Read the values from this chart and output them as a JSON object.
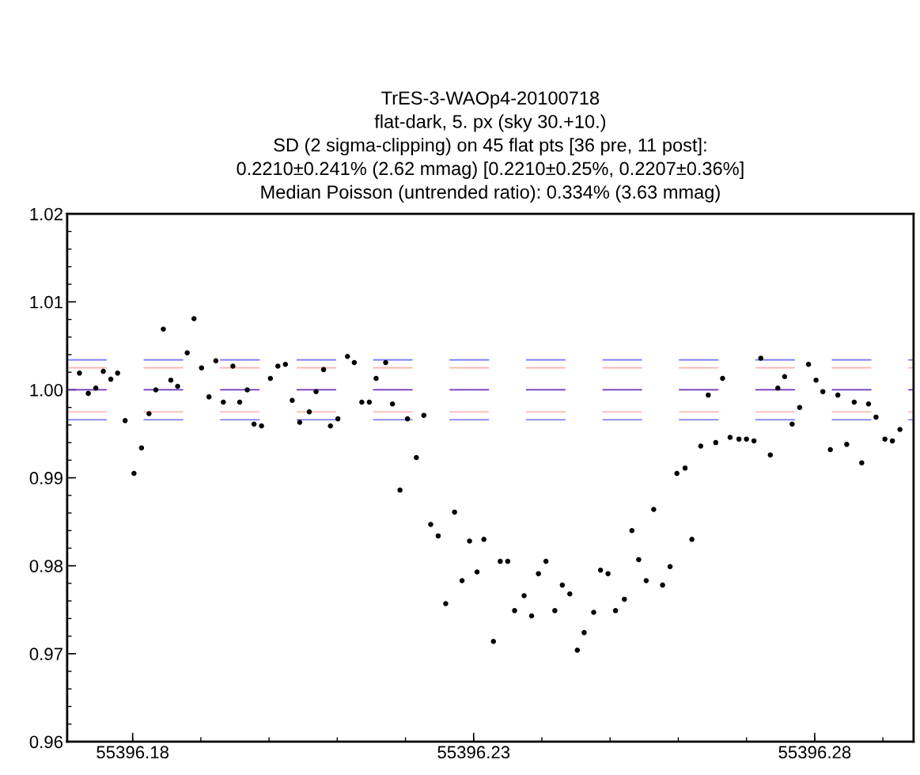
{
  "chart_data": {
    "type": "scatter",
    "title": "TrES-3-WAOp4-20100718",
    "subtitle": "flat-dark, 5. px (sky 30.+10.)\nSD (2 sigma-clipping) on 45 flat pts [36 pre, 11 post]:\n0.2210±0.241% (2.62 mmag) [0.2210±0.25%, 0.2207±0.36%]\nMedian Poisson (untrended ratio): 0.334% (3.63 mmag)",
    "x": [
      55396.1722,
      55396.1735,
      55396.1746,
      55396.1757,
      55396.1768,
      55396.1778,
      55396.1789,
      55396.1802,
      55396.1813,
      55396.1824,
      55396.1834,
      55396.1845,
      55396.1856,
      55396.1866,
      55396.188,
      55396.189,
      55396.1901,
      55396.1912,
      55396.1922,
      55396.1933,
      55396.1947,
      55396.1957,
      55396.1968,
      55396.1978,
      55396.1989,
      55396.2002,
      55396.2013,
      55396.2024,
      55396.2034,
      55396.2045,
      55396.2059,
      55396.2069,
      55396.208,
      55396.209,
      55396.2101,
      55396.2115,
      55396.2125,
      55396.2136,
      55396.2147,
      55396.2157,
      55396.2171,
      55396.2181,
      55396.2192,
      55396.2203,
      55396.2216,
      55396.2227,
      55396.2237,
      55396.2248,
      55396.2259,
      55396.2272,
      55396.2283,
      55396.2294,
      55396.2305,
      55396.2315,
      55396.2329,
      55396.2339,
      55396.235,
      55396.236,
      55396.2374,
      55396.2385,
      55396.2395,
      55396.2406,
      55396.2419,
      55396.243,
      55396.2441,
      55396.2452,
      55396.2462,
      55396.2476,
      55396.2486,
      55396.2497,
      55396.2508,
      55396.2521,
      55396.2532,
      55396.2542,
      55396.2553,
      55396.2564,
      55396.2577,
      55396.2588,
      55396.2598,
      55396.261,
      55396.262,
      55396.2633,
      55396.2644,
      55396.2655,
      55396.2665,
      55396.2676,
      55396.2689,
      55396.27,
      55396.2711,
      55396.2721,
      55396.2735,
      55396.2746,
      55396.2756,
      55396.2767,
      55396.2778,
      55396.2791,
      55396.2802,
      55396.2812,
      55396.2823,
      55396.2834,
      55396.2847,
      55396.2858,
      55396.2869,
      55396.2879,
      55396.289,
      55396.2903,
      55396.2914,
      55396.2925
    ],
    "values": [
      1.0019,
      0.9996,
      1.0002,
      1.0021,
      1.0012,
      1.0019,
      0.9965,
      0.9905,
      0.9934,
      0.9973,
      1.0,
      1.0069,
      1.0011,
      1.0004,
      1.0042,
      1.0081,
      1.0025,
      0.9992,
      1.0033,
      0.9986,
      1.0027,
      0.9986,
      1.0,
      0.9961,
      0.9959,
      1.0013,
      1.0027,
      1.0029,
      0.9988,
      0.9963,
      0.9975,
      0.9998,
      1.0023,
      0.9959,
      0.9967,
      1.0038,
      1.0031,
      0.9986,
      0.9986,
      1.0013,
      1.0031,
      0.9984,
      0.9886,
      0.9967,
      0.9923,
      0.9971,
      0.9847,
      0.9834,
      0.9757,
      0.9861,
      0.9783,
      0.9828,
      0.9793,
      0.983,
      0.9714,
      0.9805,
      0.9805,
      0.9749,
      0.9766,
      0.9743,
      0.9791,
      0.9805,
      0.9749,
      0.9778,
      0.9768,
      0.9704,
      0.9724,
      0.9747,
      0.9795,
      0.9791,
      0.9749,
      0.9762,
      0.984,
      0.9807,
      0.9783,
      0.9864,
      0.9778,
      0.9799,
      0.9905,
      0.9911,
      0.983,
      0.9936,
      0.9994,
      0.994,
      1.0013,
      0.9946,
      0.9944,
      0.9944,
      0.9942,
      1.0036,
      0.9926,
      1.0002,
      1.0015,
      0.9961,
      0.998,
      1.0029,
      1.0011,
      0.9998,
      0.9932,
      0.9994,
      0.9938,
      0.9986,
      0.9917,
      0.9984,
      0.9969,
      0.9944,
      0.9942,
      0.9955
    ],
    "color": "#000000",
    "marker": "circle",
    "xlim": [
      55396.1704,
      55396.2945
    ],
    "xticks": [
      55396.18,
      55396.23,
      55396.28
    ],
    "ylim": [
      0.96,
      1.02
    ],
    "yticks": [
      0.96,
      0.97,
      0.98,
      0.99,
      {
        "value": 1.0,
        "label": "1.00"
      },
      1.01,
      1.02
    ],
    "grid": false,
    "legend": false,
    "ref_lines": [
      {
        "axis": "y",
        "value": 1.0034,
        "color": "#7070ff",
        "line_style": "dashed"
      },
      {
        "axis": "y",
        "value": 1.0025,
        "color": "#ffb0b0",
        "line_style": "dashed"
      },
      {
        "axis": "y",
        "value": 1.0,
        "color": "#7030b8",
        "line_style": "dashed"
      },
      {
        "axis": "y",
        "value": 0.9975,
        "color": "#ffb0b0",
        "line_style": "dashed"
      },
      {
        "axis": "y",
        "value": 0.9966,
        "color": "#7070ff",
        "line_style": "dashed"
      }
    ]
  }
}
